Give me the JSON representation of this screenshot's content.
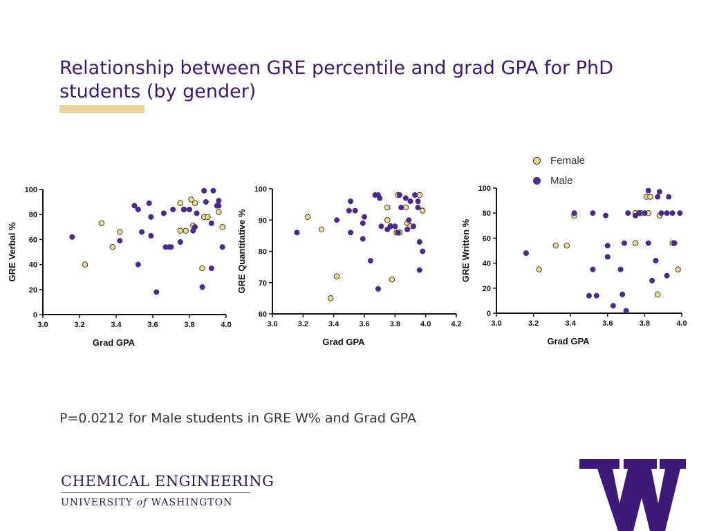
{
  "slide": {
    "title": "Relationship between GRE percentile and grad GPA for PhD students (by gender)",
    "note": "P=0.0212 for Male students in GRE W% and Grad GPA",
    "colors": {
      "title": "#3b1a6e",
      "accent": "#e8d49a",
      "female": "#f1d98d",
      "male": "#4b2a8c"
    }
  },
  "footer": {
    "dept": "CHEMICAL ENGINEERING",
    "univ_pre": "UNIVERSITY ",
    "univ_of": "of",
    "univ_post": " WASHINGTON",
    "logo": "uw-w-logo"
  },
  "legend": {
    "female": "Female",
    "male": "Male"
  },
  "chart_data": [
    {
      "type": "scatter",
      "xlabel": "Grad GPA",
      "ylabel": "GRE Verbal %",
      "xlim": [
        3.0,
        4.0
      ],
      "ylim": [
        0,
        100
      ],
      "xticks": [
        "3.0",
        "3.2",
        "3.4",
        "3.6",
        "3.8",
        "4.0"
      ],
      "yticks": [
        "0",
        "20",
        "40",
        "60",
        "80",
        "100"
      ],
      "series": [
        {
          "name": "Female",
          "points": [
            [
              3.23,
              40
            ],
            [
              3.32,
              73
            ],
            [
              3.38,
              54
            ],
            [
              3.42,
              66
            ],
            [
              3.75,
              89
            ],
            [
              3.75,
              67
            ],
            [
              3.77,
              84
            ],
            [
              3.78,
              67
            ],
            [
              3.81,
              92
            ],
            [
              3.82,
              71
            ],
            [
              3.83,
              89
            ],
            [
              3.87,
              37
            ],
            [
              3.88,
              78
            ],
            [
              3.9,
              78
            ],
            [
              3.96,
              82
            ],
            [
              3.98,
              70
            ]
          ]
        },
        {
          "name": "Male",
          "points": [
            [
              3.16,
              62
            ],
            [
              3.42,
              59
            ],
            [
              3.5,
              87
            ],
            [
              3.52,
              40
            ],
            [
              3.52,
              84
            ],
            [
              3.54,
              66
            ],
            [
              3.58,
              89
            ],
            [
              3.59,
              63
            ],
            [
              3.59,
              78
            ],
            [
              3.62,
              18
            ],
            [
              3.66,
              81
            ],
            [
              3.67,
              54
            ],
            [
              3.69,
              54
            ],
            [
              3.7,
              54
            ],
            [
              3.71,
              84
            ],
            [
              3.75,
              58
            ],
            [
              3.77,
              84
            ],
            [
              3.8,
              84
            ],
            [
              3.82,
              67
            ],
            [
              3.83,
              70
            ],
            [
              3.84,
              81
            ],
            [
              3.87,
              22
            ],
            [
              3.88,
              99
            ],
            [
              3.89,
              90
            ],
            [
              3.92,
              37
            ],
            [
              3.92,
              73
            ],
            [
              3.93,
              99
            ],
            [
              3.95,
              87
            ],
            [
              3.96,
              91
            ],
            [
              3.96,
              87
            ],
            [
              3.98,
              54
            ]
          ]
        }
      ]
    },
    {
      "type": "scatter",
      "xlabel": "Grad GPA",
      "ylabel": "GRE Quantitative %",
      "xlim": [
        3.0,
        4.2
      ],
      "ylim": [
        60,
        100
      ],
      "xticks": [
        "3.0",
        "3.2",
        "3.4",
        "3.6",
        "3.8",
        "4.0",
        "4.2"
      ],
      "yticks": [
        "60",
        "70",
        "80",
        "90",
        "100"
      ],
      "series": [
        {
          "name": "Female",
          "points": [
            [
              3.23,
              91
            ],
            [
              3.32,
              87
            ],
            [
              3.38,
              65
            ],
            [
              3.42,
              72
            ],
            [
              3.75,
              94
            ],
            [
              3.75,
              90
            ],
            [
              3.77,
              88
            ],
            [
              3.78,
              71
            ],
            [
              3.81,
              86
            ],
            [
              3.82,
              98
            ],
            [
              3.83,
              86
            ],
            [
              3.87,
              94
            ],
            [
              3.88,
              89
            ],
            [
              3.9,
              88
            ],
            [
              3.96,
              98
            ],
            [
              3.98,
              93
            ]
          ]
        },
        {
          "name": "Male",
          "points": [
            [
              3.16,
              86
            ],
            [
              3.42,
              90
            ],
            [
              3.5,
              93
            ],
            [
              3.51,
              86
            ],
            [
              3.51,
              96
            ],
            [
              3.54,
              93
            ],
            [
              3.59,
              84
            ],
            [
              3.59,
              89
            ],
            [
              3.6,
              91
            ],
            [
              3.64,
              77
            ],
            [
              3.67,
              98
            ],
            [
              3.69,
              68
            ],
            [
              3.69,
              98
            ],
            [
              3.7,
              97
            ],
            [
              3.71,
              88
            ],
            [
              3.75,
              87
            ],
            [
              3.77,
              88
            ],
            [
              3.8,
              88
            ],
            [
              3.82,
              86
            ],
            [
              3.83,
              98
            ],
            [
              3.84,
              94
            ],
            [
              3.87,
              97
            ],
            [
              3.88,
              87
            ],
            [
              3.89,
              90
            ],
            [
              3.9,
              96
            ],
            [
              3.92,
              88
            ],
            [
              3.93,
              98
            ],
            [
              3.95,
              94
            ],
            [
              3.95,
              96
            ],
            [
              3.96,
              83
            ],
            [
              3.96,
              74
            ],
            [
              3.98,
              80
            ]
          ]
        }
      ]
    },
    {
      "type": "scatter",
      "xlabel": "Grad GPA",
      "ylabel": "GRE Written %",
      "xlim": [
        3.0,
        4.0
      ],
      "ylim": [
        0,
        100
      ],
      "xticks": [
        "3.0",
        "3.2",
        "3.4",
        "3.6",
        "3.8",
        "4.0"
      ],
      "yticks": [
        "0",
        "20",
        "40",
        "60",
        "80",
        "100"
      ],
      "series": [
        {
          "name": "Female",
          "points": [
            [
              3.23,
              35
            ],
            [
              3.32,
              54
            ],
            [
              3.38,
              54
            ],
            [
              3.42,
              78
            ],
            [
              3.75,
              56
            ],
            [
              3.75,
              80
            ],
            [
              3.77,
              80
            ],
            [
              3.78,
              80
            ],
            [
              3.81,
              93
            ],
            [
              3.82,
              80
            ],
            [
              3.83,
              93
            ],
            [
              3.87,
              15
            ],
            [
              3.88,
              78
            ],
            [
              3.95,
              56
            ],
            [
              3.96,
              56
            ],
            [
              3.98,
              35
            ]
          ]
        },
        {
          "name": "Male",
          "points": [
            [
              3.16,
              48
            ],
            [
              3.42,
              80
            ],
            [
              3.5,
              14
            ],
            [
              3.52,
              80
            ],
            [
              3.52,
              35
            ],
            [
              3.54,
              14
            ],
            [
              3.59,
              78
            ],
            [
              3.6,
              54
            ],
            [
              3.6,
              45
            ],
            [
              3.63,
              6
            ],
            [
              3.67,
              35
            ],
            [
              3.68,
              15
            ],
            [
              3.69,
              56
            ],
            [
              3.7,
              2
            ],
            [
              3.71,
              80
            ],
            [
              3.75,
              78
            ],
            [
              3.77,
              80
            ],
            [
              3.8,
              80
            ],
            [
              3.82,
              98
            ],
            [
              3.82,
              56
            ],
            [
              3.84,
              26
            ],
            [
              3.86,
              42
            ],
            [
              3.87,
              93
            ],
            [
              3.88,
              97
            ],
            [
              3.89,
              80
            ],
            [
              3.92,
              30
            ],
            [
              3.92,
              80
            ],
            [
              3.93,
              93
            ],
            [
              3.95,
              80
            ],
            [
              3.96,
              56
            ],
            [
              3.99,
              80
            ]
          ]
        }
      ]
    }
  ]
}
